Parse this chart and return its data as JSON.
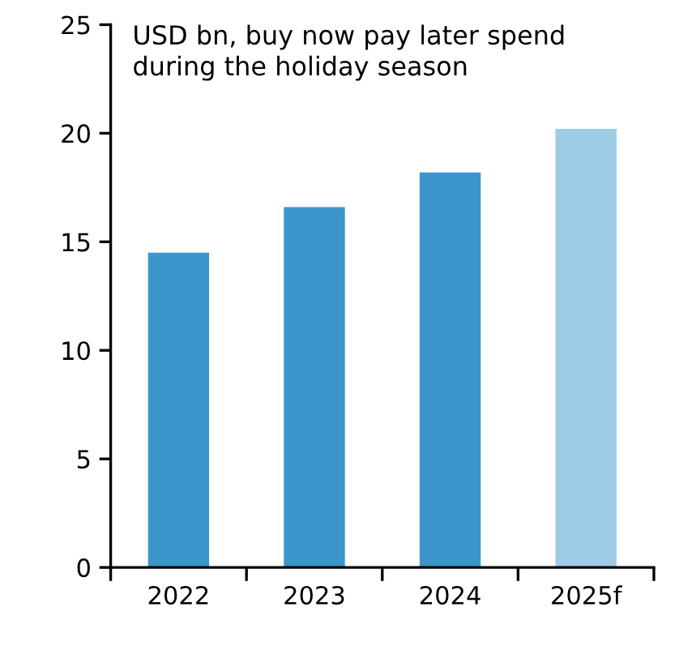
{
  "chart_data": {
    "type": "bar",
    "subtitle": "USD bn, buy now pay later spend\nduring the holiday season",
    "categories": [
      "2022",
      "2023",
      "2024",
      "2025f"
    ],
    "values": [
      14.5,
      16.6,
      18.2,
      20.2
    ],
    "colors": [
      "#3d96cb",
      "#3d96cb",
      "#3d96cb",
      "#9ecbe6"
    ],
    "ylim": [
      0,
      25
    ],
    "yticks": [
      0,
      5,
      10,
      15,
      20,
      25
    ],
    "grid": false,
    "legend": false
  }
}
